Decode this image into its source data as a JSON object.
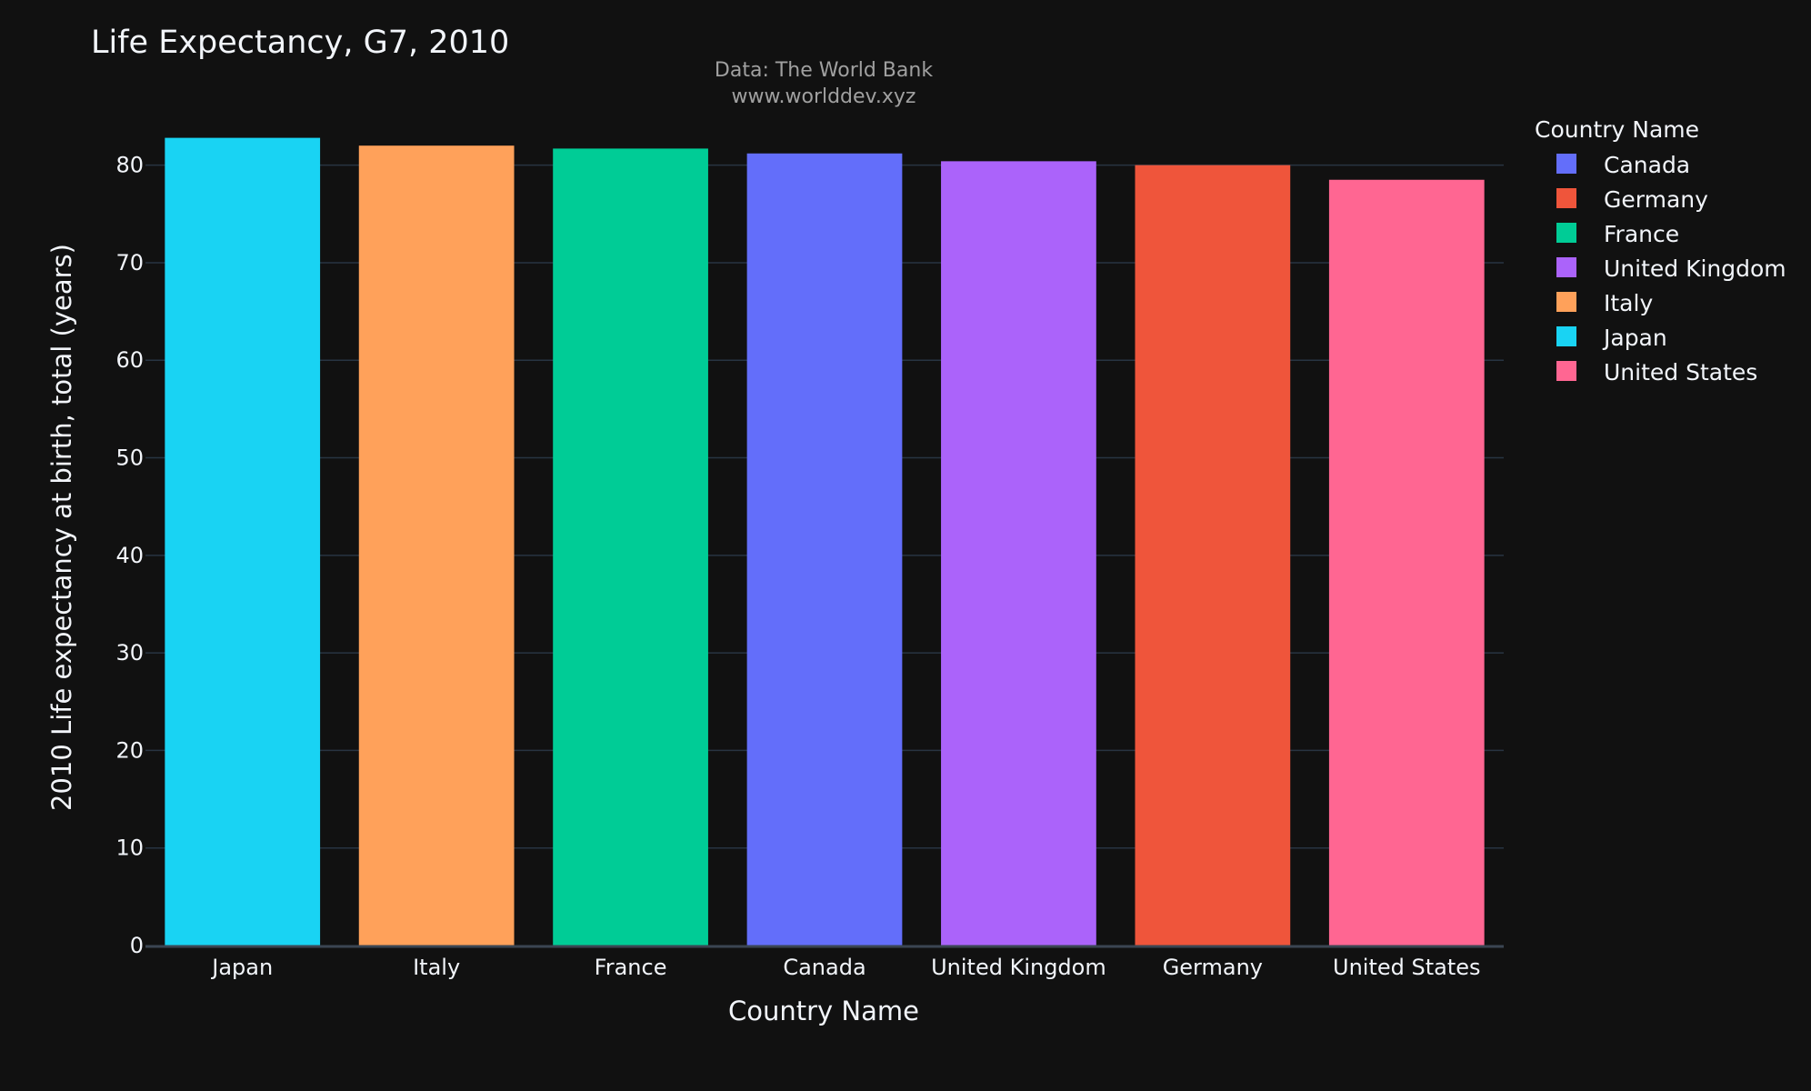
{
  "chart_data": {
    "type": "bar",
    "title": "Life Expectancy, G7, 2010",
    "subtitle_lines": [
      "Data: The World Bank",
      "www.worlddev.xyz"
    ],
    "xlabel": "Country Name",
    "ylabel": "2010 Life expectancy at birth, total (years)",
    "ylim": [
      0,
      85
    ],
    "yticks": [
      0,
      10,
      20,
      30,
      40,
      50,
      60,
      70,
      80
    ],
    "grid": true,
    "legend_title": "Country Name",
    "legend_position": "right",
    "categories": [
      "Japan",
      "Italy",
      "France",
      "Canada",
      "United Kingdom",
      "Germany",
      "United States"
    ],
    "values": [
      82.8,
      82.0,
      81.7,
      81.2,
      80.4,
      80.0,
      78.5
    ],
    "colors": [
      "#19d3f3",
      "#ffa15a",
      "#00cc96",
      "#636efa",
      "#ab63fa",
      "#ef553b",
      "#ff6692"
    ],
    "legend": [
      {
        "name": "Canada",
        "color": "#636efa"
      },
      {
        "name": "Germany",
        "color": "#ef553b"
      },
      {
        "name": "France",
        "color": "#00cc96"
      },
      {
        "name": "United Kingdom",
        "color": "#ab63fa"
      },
      {
        "name": "Italy",
        "color": "#ffa15a"
      },
      {
        "name": "Japan",
        "color": "#19d3f3"
      },
      {
        "name": "United States",
        "color": "#ff6692"
      }
    ],
    "background": "#111111",
    "grid_color": "#283442"
  }
}
